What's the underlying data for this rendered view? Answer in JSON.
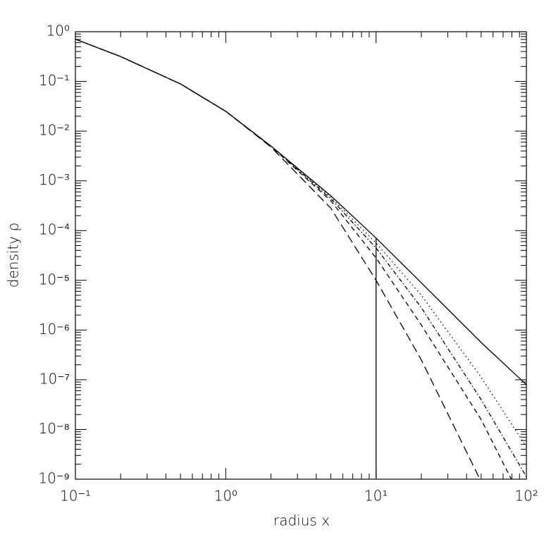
{
  "chart_data": {
    "type": "line",
    "log_x": true,
    "log_y": true,
    "x_label": "radius x",
    "y_label": "density ρ",
    "x": [
      0.1,
      0.2,
      0.5,
      1,
      2,
      5,
      10,
      20,
      50,
      100
    ],
    "xlim": [
      0.1,
      100
    ],
    "ylim": [
      1e-09,
      1
    ],
    "xticks": [
      {
        "value": 0.1,
        "label": "10⁻¹"
      },
      {
        "value": 1,
        "label": "10⁰"
      },
      {
        "value": 10,
        "label": "10¹"
      },
      {
        "value": 100,
        "label": "10²"
      }
    ],
    "yticks": [
      {
        "value": 1e-09,
        "label": "10⁻⁹"
      },
      {
        "value": 1e-08,
        "label": "10⁻⁸"
      },
      {
        "value": 1e-07,
        "label": "10⁻⁷"
      },
      {
        "value": 1e-06,
        "label": "10⁻⁶"
      },
      {
        "value": 1e-05,
        "label": "10⁻⁵"
      },
      {
        "value": 0.0001,
        "label": "10⁻⁴"
      },
      {
        "value": 0.001,
        "label": "10⁻³"
      },
      {
        "value": 0.01,
        "label": "10⁻²"
      },
      {
        "value": 0.1,
        "label": "10⁻¹"
      },
      {
        "value": 1,
        "label": "10⁰"
      }
    ],
    "series": [
      {
        "color": "#000000",
        "dash": "solid",
        "values": [
          0.708,
          0.316,
          0.0891,
          0.0251,
          0.00501,
          0.000501,
          7.08e-05,
          8.91e-06,
          5.62e-07,
          7.94e-08
        ]
      },
      {
        "color": "#000000",
        "dash": "dotted",
        "values": [
          0.708,
          0.316,
          0.0891,
          0.0251,
          0.00501,
          0.000468,
          5.62e-05,
          5.01e-06,
          1.12e-07,
          4.47e-09
        ]
      },
      {
        "color": "#000000",
        "dash": "dashdot",
        "values": [
          0.708,
          0.316,
          0.0891,
          0.0251,
          0.00501,
          0.000437,
          4.47e-05,
          2.82e-06,
          3.98e-08,
          1.12e-09
        ]
      },
      {
        "color": "#000000",
        "dash": "dashed",
        "values": [
          0.708,
          0.316,
          0.0891,
          0.0251,
          0.00495,
          0.000398,
          2.82e-05,
          1.26e-06,
          1.58e-08,
          2.5e-10
        ]
      },
      {
        "color": "#000000",
        "dash": "longdash",
        "values": [
          0.708,
          0.316,
          0.0891,
          0.0251,
          0.00479,
          0.000282,
          1e-05,
          2.51e-07,
          8.9e-10,
          null
        ]
      },
      {
        "color": "#000000",
        "dash": "solid",
        "x": [
          10,
          10
        ],
        "values": [
          7.08e-05,
          1e-09
        ]
      }
    ]
  }
}
